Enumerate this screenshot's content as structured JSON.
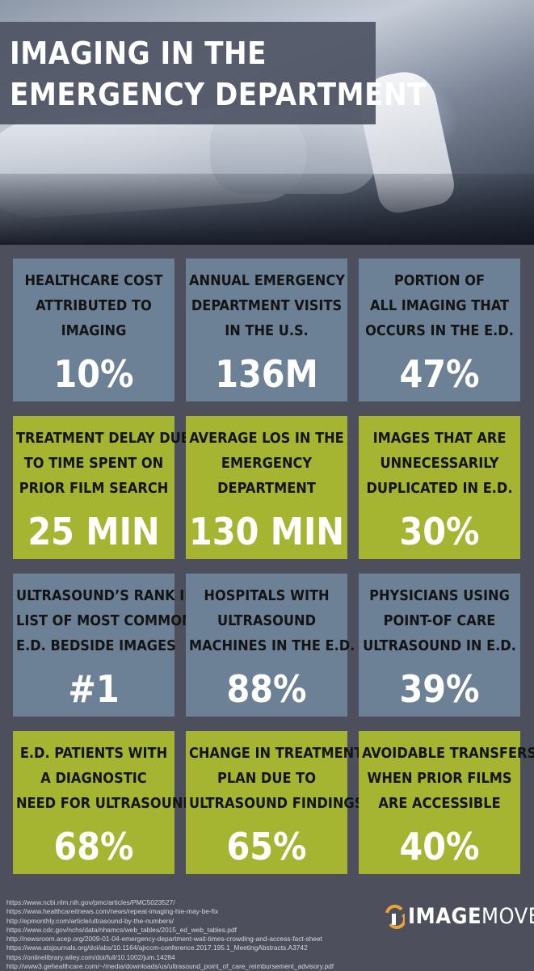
{
  "title_lines": [
    "IMAGING IN THE",
    "EMERGENCY DEPARTMENT"
  ],
  "tiles": [
    {
      "lines": [
        "HEALTHCARE COST",
        "ATTRIBUTED TO",
        "IMAGING"
      ],
      "value": "10%",
      "color": "#6c8196"
    },
    {
      "lines": [
        "ANNUAL EMERGENCY",
        "DEPARTMENT VISITS",
        "IN THE U.S."
      ],
      "value": "136M",
      "color": "#6c8196"
    },
    {
      "lines": [
        "PORTION OF",
        "ALL IMAGING THAT",
        "OCCURS IN THE E.D."
      ],
      "value": "47%",
      "color": "#6c8196"
    },
    {
      "lines": [
        "TREATMENT DELAY DUE",
        "TO TIME SPENT ON",
        "PRIOR FILM SEARCH"
      ],
      "value": "25 MIN",
      "color": "#a5b531"
    },
    {
      "lines": [
        "AVERAGE LOS IN THE",
        "EMERGENCY",
        "DEPARTMENT"
      ],
      "value": "130 MIN",
      "color": "#a5b531"
    },
    {
      "lines": [
        "IMAGES THAT ARE",
        "UNNECESSARILY",
        "DUPLICATED IN E.D."
      ],
      "value": "30%",
      "color": "#a5b531"
    },
    {
      "lines": [
        "ULTRASOUND’S RANK IN",
        "LIST OF MOST COMMON",
        "E.D. BEDSIDE IMAGES"
      ],
      "value": "#1",
      "color": "#6c8196"
    },
    {
      "lines": [
        "HOSPITALS WITH",
        "ULTRASOUND",
        "MACHINES IN THE E.D."
      ],
      "value": "88%",
      "color": "#6c8196"
    },
    {
      "lines": [
        "PHYSICIANS USING",
        "POINT-OF CARE",
        "ULTRASOUND IN E.D."
      ],
      "value": "39%",
      "color": "#6c8196"
    },
    {
      "lines": [
        "E.D. PATIENTS WITH",
        "A DIAGNOSTIC",
        "NEED FOR ULTRASOUND"
      ],
      "value": "68%",
      "color": "#a5b531"
    },
    {
      "lines": [
        "CHANGE IN TREATMENT",
        "PLAN DUE TO",
        "ULTRASOUND FINDINGS"
      ],
      "value": "65%",
      "color": "#a5b531"
    },
    {
      "lines": [
        "AVOIDABLE TRANSFERS",
        "WHEN PRIOR FILMS",
        "ARE ACCESSIBLE"
      ],
      "value": "40%",
      "color": "#a5b531"
    }
  ],
  "sources": [
    "https://www.ncbi.nlm.nih.gov/pmc/articles/PMC5023527/",
    "https://www.healthcareitnews.com/news/repeat-imaging-hie-may-be-fix",
    "http://epmonthly.com/article/ultrasound-by-the-numbers/",
    "https://www.cdc.gov/nchs/data/nhamcs/web_tables/2015_ed_web_tables.pdf",
    "http://newsroom.acep.org/2009-01-04-emergency-department-wait-times-crowding-and-access-fact-sheet",
    "https://www.atsjournals.org/doi/abs/10.1164/ajrccm-conference.2017.195.1_MeetingAbstracts.A3742",
    "https://onlinelibrary.wiley.com/doi/full/10.1002/jum.14284",
    "http://www3.gehealthcare.com/~/media/downloads/us/ultrasound_point_of_care_reimbursement_advisory.pdf"
  ],
  "logo": {
    "bold": "IMAGE",
    "thin": "MOVER",
    "icon": "image-mover-logo-icon",
    "accent": "#e8a33a"
  },
  "colors": {
    "background": "#4e4f5c",
    "blue_tile": "#6c8196",
    "green_tile": "#a5b531"
  }
}
